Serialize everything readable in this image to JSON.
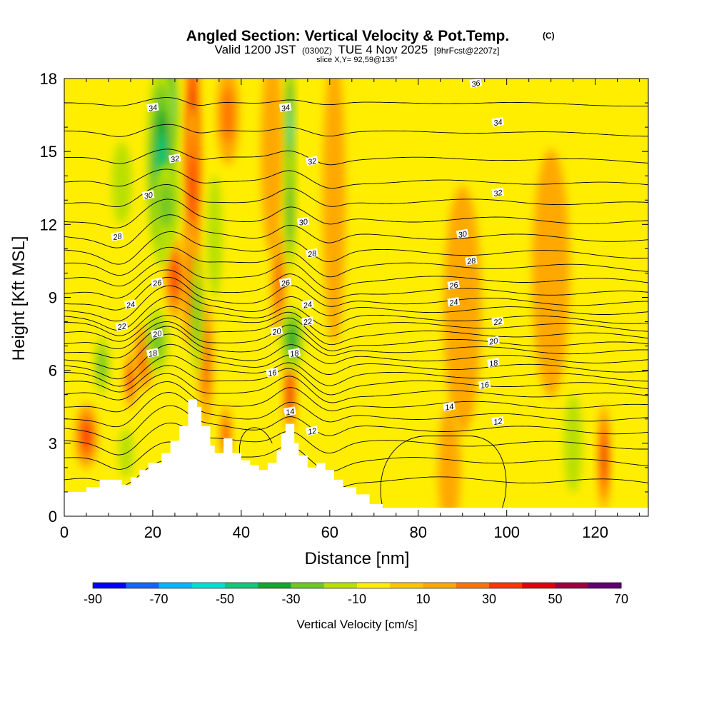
{
  "chart_data": {
    "type": "heatmap",
    "title": "Angled Section: Vertical Velocity & Pot.Temp.",
    "title_mark": "(C)",
    "subtitle": {
      "prefix": "Valid 1200 JST",
      "utc": "(0300Z)",
      "date": "TUE 4 Nov 2025",
      "forecast": "[9hrFcst@2207z]"
    },
    "slice_label": "slice X,Y= 92,59@135°",
    "xlabel": "Distance [nm]",
    "ylabel": "Height [Kft MSL]",
    "xlim": [
      0,
      132
    ],
    "ylim": [
      0,
      18
    ],
    "x_ticks": [
      "0",
      "20",
      "40",
      "60",
      "80",
      "100",
      "120"
    ],
    "x_tick_values": [
      0,
      20,
      40,
      60,
      80,
      100,
      120
    ],
    "y_ticks": [
      "0",
      "3",
      "6",
      "9",
      "12",
      "15",
      "18"
    ],
    "y_tick_values": [
      0,
      3,
      6,
      9,
      12,
      15,
      18
    ],
    "colorbar": {
      "label": "Vertical Velocity [cm/s]",
      "ticks": [
        "-90",
        "-70",
        "-50",
        "-30",
        "-10",
        "10",
        "30",
        "50",
        "70"
      ],
      "tick_values": [
        -90,
        -70,
        -50,
        -30,
        -10,
        10,
        30,
        50,
        70
      ],
      "range": [
        -90,
        70
      ],
      "colors": [
        "#0000ff",
        "#1066ff",
        "#00b8ff",
        "#00e0d0",
        "#10c87a",
        "#10a830",
        "#70c820",
        "#b8e000",
        "#ffee00",
        "#ffc400",
        "#ffa800",
        "#ff7400",
        "#ff3600",
        "#e00010",
        "#a00040",
        "#600070"
      ]
    },
    "background_color": "#ffee00",
    "terrain": [
      [
        0,
        1.0
      ],
      [
        5,
        1.0
      ],
      [
        5,
        1.2
      ],
      [
        8,
        1.2
      ],
      [
        8,
        1.5
      ],
      [
        13,
        1.5
      ],
      [
        13,
        1.3
      ],
      [
        15,
        1.3
      ],
      [
        15,
        1.6
      ],
      [
        17,
        1.6
      ],
      [
        17,
        1.9
      ],
      [
        19,
        1.9
      ],
      [
        19,
        2.2
      ],
      [
        22,
        2.2
      ],
      [
        22,
        2.6
      ],
      [
        24,
        2.6
      ],
      [
        24,
        3.1
      ],
      [
        26,
        3.1
      ],
      [
        26,
        3.7
      ],
      [
        28,
        3.7
      ],
      [
        28,
        4.8
      ],
      [
        30,
        4.8
      ],
      [
        30,
        4.5
      ],
      [
        31,
        4.5
      ],
      [
        31,
        3.7
      ],
      [
        33,
        3.7
      ],
      [
        33,
        2.9
      ],
      [
        34,
        2.9
      ],
      [
        34,
        2.6
      ],
      [
        36,
        2.6
      ],
      [
        36,
        3.2
      ],
      [
        38,
        3.2
      ],
      [
        38,
        2.6
      ],
      [
        40,
        2.6
      ],
      [
        40,
        2.3
      ],
      [
        42,
        2.3
      ],
      [
        42,
        2.1
      ],
      [
        44,
        2.1
      ],
      [
        44,
        1.9
      ],
      [
        46,
        1.9
      ],
      [
        46,
        2.2
      ],
      [
        48,
        2.2
      ],
      [
        48,
        2.7
      ],
      [
        49,
        2.7
      ],
      [
        49,
        3.4
      ],
      [
        50,
        3.4
      ],
      [
        50,
        3.8
      ],
      [
        52,
        3.8
      ],
      [
        52,
        3.0
      ],
      [
        53,
        3.0
      ],
      [
        53,
        2.5
      ],
      [
        55,
        2.5
      ],
      [
        55,
        2.0
      ],
      [
        57,
        2.0
      ],
      [
        57,
        2.2
      ],
      [
        59,
        2.2
      ],
      [
        59,
        1.9
      ],
      [
        61,
        1.9
      ],
      [
        61,
        1.5
      ],
      [
        63,
        1.5
      ],
      [
        63,
        1.2
      ],
      [
        66,
        1.2
      ],
      [
        66,
        0.9
      ],
      [
        69,
        0.9
      ],
      [
        69,
        0.5
      ],
      [
        72,
        0.5
      ],
      [
        72,
        0.35
      ],
      [
        132,
        0.35
      ]
    ],
    "updrafts": [
      {
        "x": 29.0,
        "y": 16.5,
        "value": 45,
        "sx": 1.0,
        "sy": 2.2
      },
      {
        "x": 29.0,
        "y": 13.5,
        "value": 30,
        "sx": 1.2,
        "sy": 2.0
      },
      {
        "x": 28.5,
        "y": 9.5,
        "value": 25,
        "sx": 1.2,
        "sy": 1.5
      },
      {
        "x": 25.0,
        "y": 9.8,
        "value": 38,
        "sx": 1.3,
        "sy": 1.0
      },
      {
        "x": 32.0,
        "y": 6.3,
        "value": 25,
        "sx": 1.0,
        "sy": 1.5
      },
      {
        "x": 15.0,
        "y": 5.6,
        "value": 35,
        "sx": 0.8,
        "sy": 0.7
      },
      {
        "x": 18.0,
        "y": 6.5,
        "value": 25,
        "sx": 1.3,
        "sy": 0.8
      },
      {
        "x": 5.0,
        "y": 3.3,
        "value": 30,
        "sx": 1.5,
        "sy": 0.8
      },
      {
        "x": 36.5,
        "y": 3.4,
        "value": 30,
        "sx": 0.7,
        "sy": 0.7
      },
      {
        "x": 51.0,
        "y": 5.0,
        "value": 45,
        "sx": 0.8,
        "sy": 1.0
      },
      {
        "x": 48.5,
        "y": 9.6,
        "value": 25,
        "sx": 1.0,
        "sy": 1.3
      },
      {
        "x": 37.0,
        "y": 16.5,
        "value": 20,
        "sx": 1.5,
        "sy": 1.2
      },
      {
        "x": 47.0,
        "y": 15.0,
        "value": 15,
        "sx": 1.5,
        "sy": 2.5
      },
      {
        "x": 61.0,
        "y": 13.0,
        "value": 15,
        "sx": 1.5,
        "sy": 3.5
      },
      {
        "x": 90.0,
        "y": 8.5,
        "value": 12,
        "sx": 2.5,
        "sy": 3.0
      },
      {
        "x": 122.0,
        "y": 2.4,
        "value": 40,
        "sx": 0.8,
        "sy": 1.3
      },
      {
        "x": 87.0,
        "y": 2.0,
        "value": 12,
        "sx": 1.5,
        "sy": 1.5
      },
      {
        "x": 110.0,
        "y": 10.0,
        "value": 12,
        "sx": 2.5,
        "sy": 3.0
      }
    ],
    "downdrafts": [
      {
        "x": 23.5,
        "y": 16.8,
        "value": -55,
        "sx": 1.3,
        "sy": 1.4
      },
      {
        "x": 22.0,
        "y": 14.5,
        "value": -40,
        "sx": 2.0,
        "sy": 2.5
      },
      {
        "x": 23.0,
        "y": 12.8,
        "value": -25,
        "sx": 1.8,
        "sy": 1.0
      },
      {
        "x": 51.0,
        "y": 16.0,
        "value": -55,
        "sx": 0.6,
        "sy": 1.8
      },
      {
        "x": 51.0,
        "y": 12.5,
        "value": -30,
        "sx": 0.7,
        "sy": 1.5
      },
      {
        "x": 51.5,
        "y": 7.3,
        "value": -30,
        "sx": 1.5,
        "sy": 0.8
      },
      {
        "x": 21.0,
        "y": 7.2,
        "value": -25,
        "sx": 1.5,
        "sy": 0.8
      },
      {
        "x": 8.5,
        "y": 6.2,
        "value": -22,
        "sx": 1.0,
        "sy": 0.7
      },
      {
        "x": 30.0,
        "y": 8.3,
        "value": -22,
        "sx": 0.8,
        "sy": 1.5
      },
      {
        "x": 13.0,
        "y": 13.7,
        "value": -15,
        "sx": 1.3,
        "sy": 1.0
      },
      {
        "x": 34.0,
        "y": 11.5,
        "value": -15,
        "sx": 1.0,
        "sy": 1.5
      },
      {
        "x": 14.0,
        "y": 2.6,
        "value": -12,
        "sx": 1.0,
        "sy": 0.6
      },
      {
        "x": 115.0,
        "y": 3.0,
        "value": -10,
        "sx": 1.2,
        "sy": 1.2
      },
      {
        "x": 103.0,
        "y": 2.0,
        "value": -8,
        "sx": 1.0,
        "sy": 1.0
      }
    ],
    "isentrope_levels": [
      8,
      9,
      10,
      11,
      12,
      13,
      14,
      15,
      16,
      17,
      18,
      19,
      20,
      21,
      22,
      23,
      24,
      25,
      26,
      27,
      28,
      29,
      30,
      31,
      32,
      33,
      34,
      35,
      36
    ],
    "isentrope_base_heights": [
      1.5,
      2.3,
      3.0,
      3.6,
      4.1,
      4.6,
      5.05,
      5.45,
      5.8,
      6.15,
      6.5,
      6.85,
      7.15,
      7.5,
      7.85,
      8.15,
      8.5,
      8.85,
      9.25,
      9.75,
      10.3,
      10.85,
      11.5,
      12.2,
      12.95,
      13.75,
      14.7,
      15.8,
      17.0
    ],
    "isentrope_labels": [
      {
        "text": "34",
        "x": 20,
        "y": 16.8
      },
      {
        "text": "32",
        "x": 25,
        "y": 14.7
      },
      {
        "text": "30",
        "x": 19,
        "y": 13.2
      },
      {
        "text": "28",
        "x": 12,
        "y": 11.5
      },
      {
        "text": "26",
        "x": 21,
        "y": 9.6
      },
      {
        "text": "24",
        "x": 15,
        "y": 8.7
      },
      {
        "text": "22",
        "x": 13,
        "y": 7.8
      },
      {
        "text": "20",
        "x": 21,
        "y": 7.5
      },
      {
        "text": "18",
        "x": 20,
        "y": 6.7
      },
      {
        "text": "34",
        "x": 50,
        "y": 16.8
      },
      {
        "text": "32",
        "x": 56,
        "y": 14.6
      },
      {
        "text": "30",
        "x": 54,
        "y": 12.1
      },
      {
        "text": "28",
        "x": 56,
        "y": 10.8
      },
      {
        "text": "26",
        "x": 50,
        "y": 9.6
      },
      {
        "text": "24",
        "x": 55,
        "y": 8.7
      },
      {
        "text": "22",
        "x": 55,
        "y": 8.0
      },
      {
        "text": "20",
        "x": 48,
        "y": 7.6
      },
      {
        "text": "18",
        "x": 52,
        "y": 6.7
      },
      {
        "text": "16",
        "x": 47,
        "y": 5.9
      },
      {
        "text": "14",
        "x": 51,
        "y": 4.3
      },
      {
        "text": "12",
        "x": 56,
        "y": 3.5
      },
      {
        "text": "36",
        "x": 93,
        "y": 17.8
      },
      {
        "text": "34",
        "x": 98,
        "y": 16.2
      },
      {
        "text": "32",
        "x": 98,
        "y": 13.3
      },
      {
        "text": "30",
        "x": 90,
        "y": 11.6
      },
      {
        "text": "28",
        "x": 92,
        "y": 10.5
      },
      {
        "text": "26",
        "x": 88,
        "y": 9.5
      },
      {
        "text": "24",
        "x": 88,
        "y": 8.8
      },
      {
        "text": "22",
        "x": 98,
        "y": 8.0
      },
      {
        "text": "20",
        "x": 97,
        "y": 7.2
      },
      {
        "text": "18",
        "x": 97,
        "y": 6.3
      },
      {
        "text": "16",
        "x": 95,
        "y": 5.4
      },
      {
        "text": "14",
        "x": 87,
        "y": 4.5
      },
      {
        "text": "12",
        "x": 98,
        "y": 3.9
      }
    ],
    "isentrope_label_terms": [
      "34",
      "32",
      "30",
      "28",
      "26",
      "24",
      "22",
      "20",
      "18",
      "16",
      "14",
      "12",
      "36"
    ]
  }
}
